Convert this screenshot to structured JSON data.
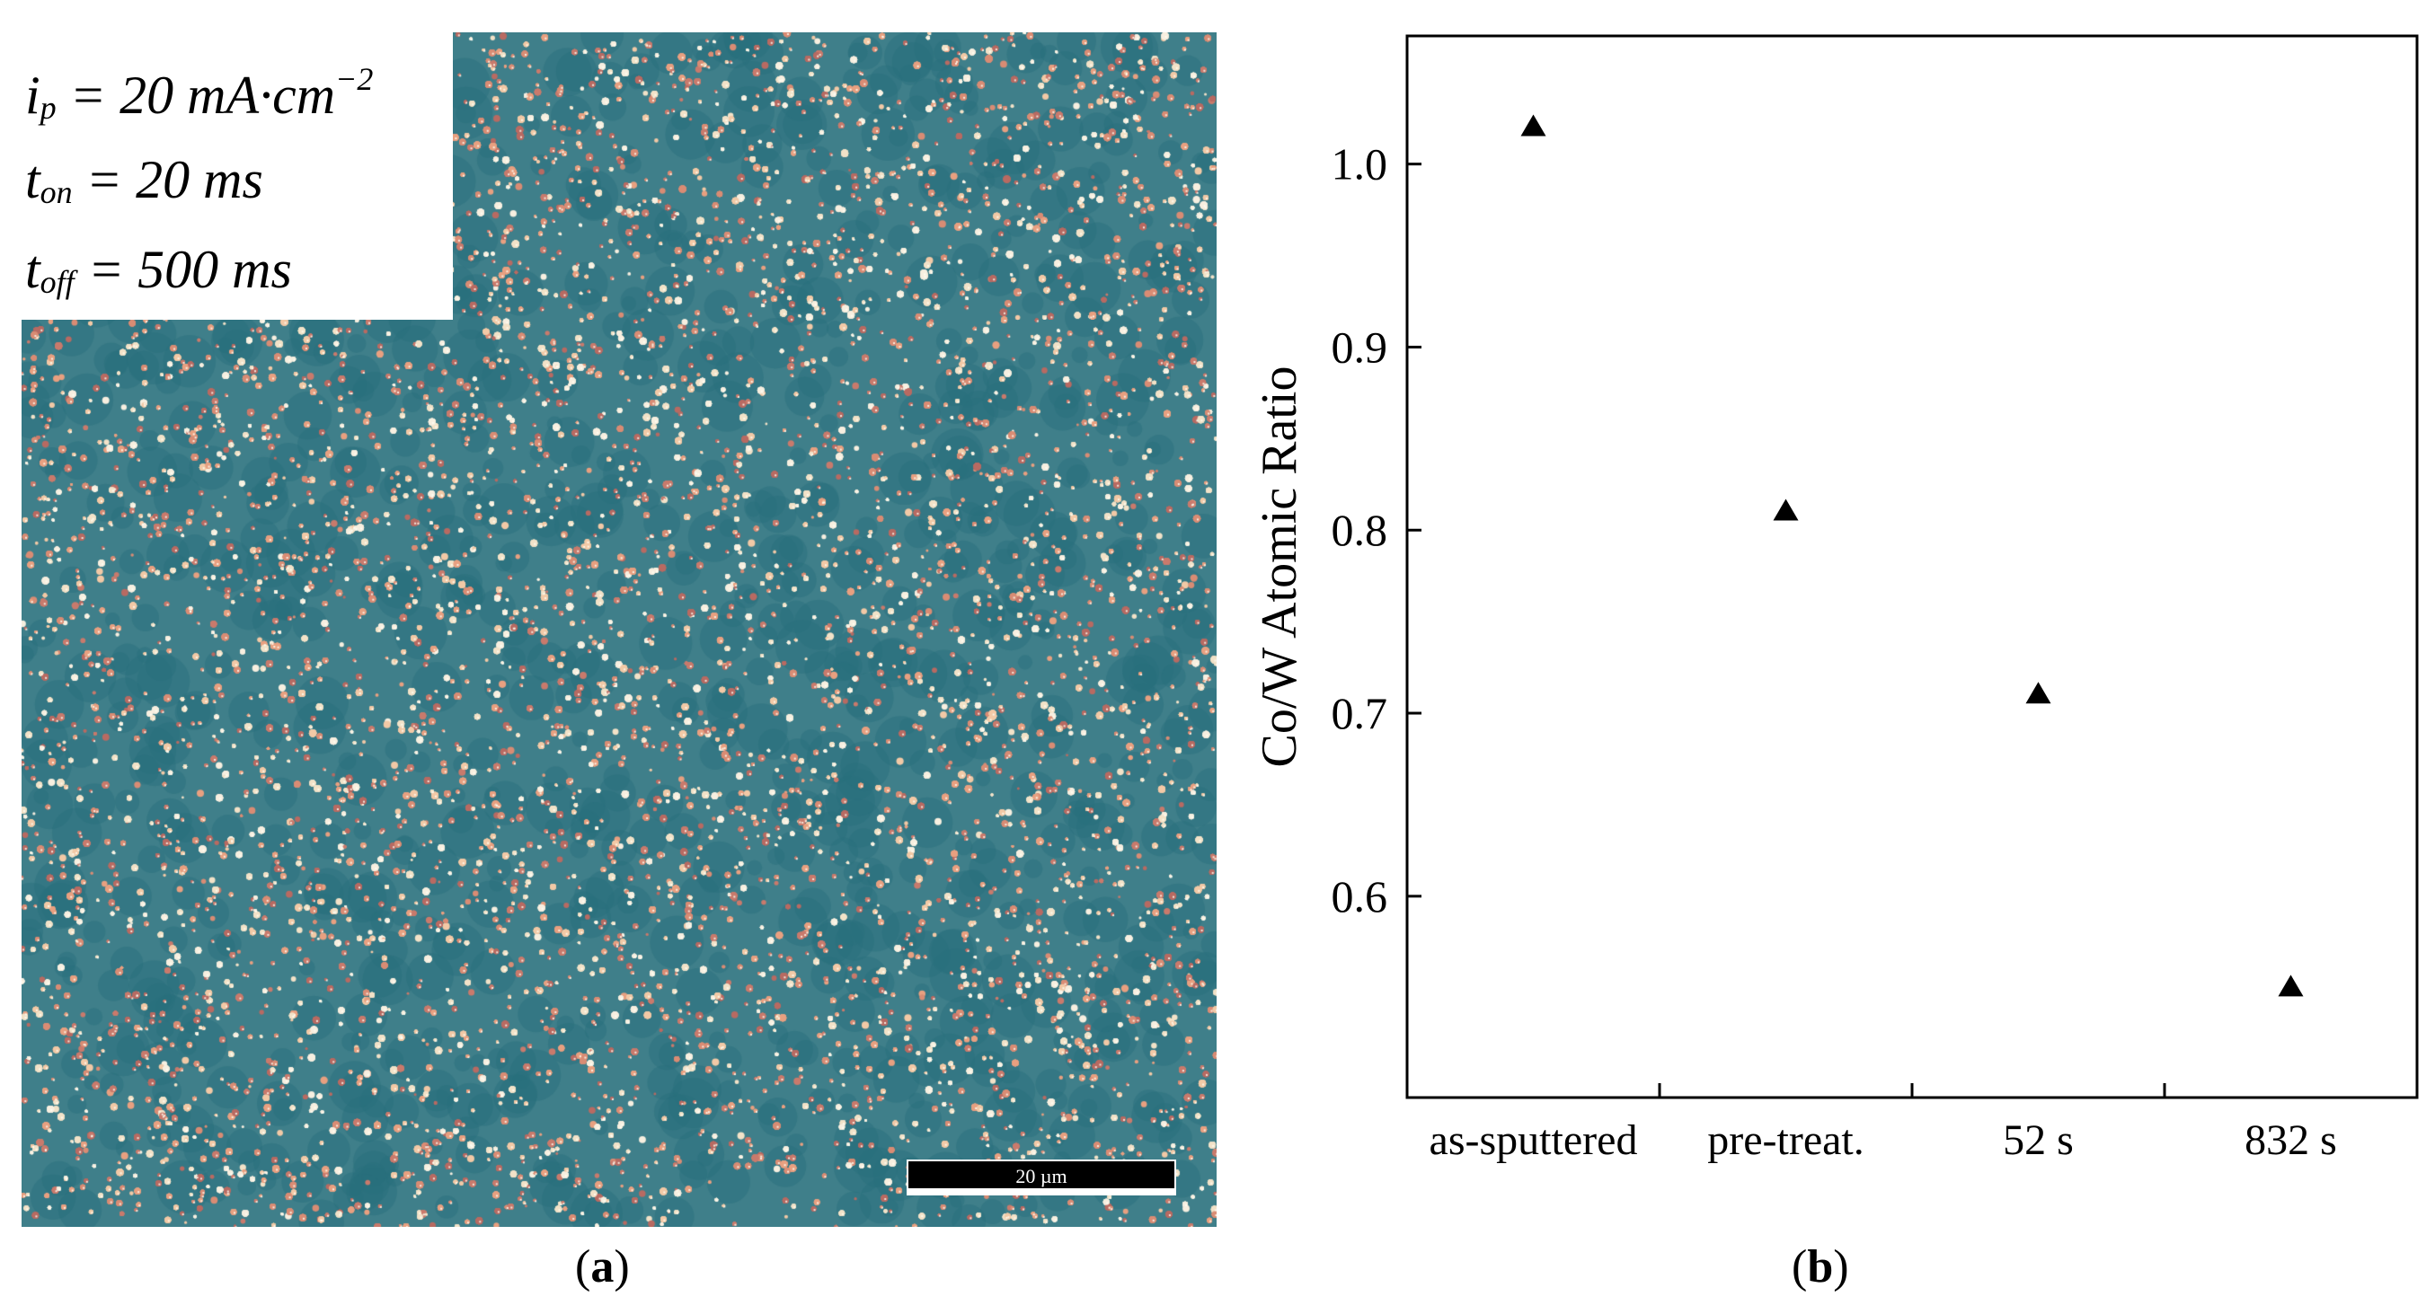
{
  "panel_a": {
    "params": {
      "ip_sym": "i",
      "ip_sub": "p",
      "ip_rest": " = 20 mA·cm",
      "ip_sup": "−2",
      "ton_sym": "t",
      "ton_sub": "on",
      "ton_rest": " = 20 ms",
      "toff_sym": "t",
      "toff_sub": "off",
      "toff_rest": " = 500 ms"
    },
    "scale_bar_label": "20 µm",
    "caption_open": "(",
    "caption_letter": "a",
    "caption_close": ")",
    "colors": {
      "background": "#3f7f8a",
      "particle_warm": "#e8a080",
      "particle_light": "#f2e2c8"
    }
  },
  "panel_b": {
    "caption_open": "(",
    "caption_letter": "b",
    "caption_close": ")"
  },
  "chart_data": {
    "type": "scatter",
    "title": "",
    "xlabel": "",
    "ylabel": "Co/W Atomic Ratio",
    "categories": [
      "as-sputtered",
      "pre-treat.",
      "52 s",
      "832 s"
    ],
    "series": [
      {
        "name": "Co/W",
        "marker": "triangle",
        "values": [
          1.02,
          0.81,
          0.71,
          0.55
        ]
      }
    ],
    "ylim": [
      0.49,
      1.07
    ],
    "yticks": [
      0.6,
      0.7,
      0.8,
      0.9,
      1.0
    ],
    "ytick_labels": [
      "0.6",
      "0.7",
      "0.8",
      "0.9",
      "1.0"
    ],
    "grid": false,
    "legend": "none"
  }
}
